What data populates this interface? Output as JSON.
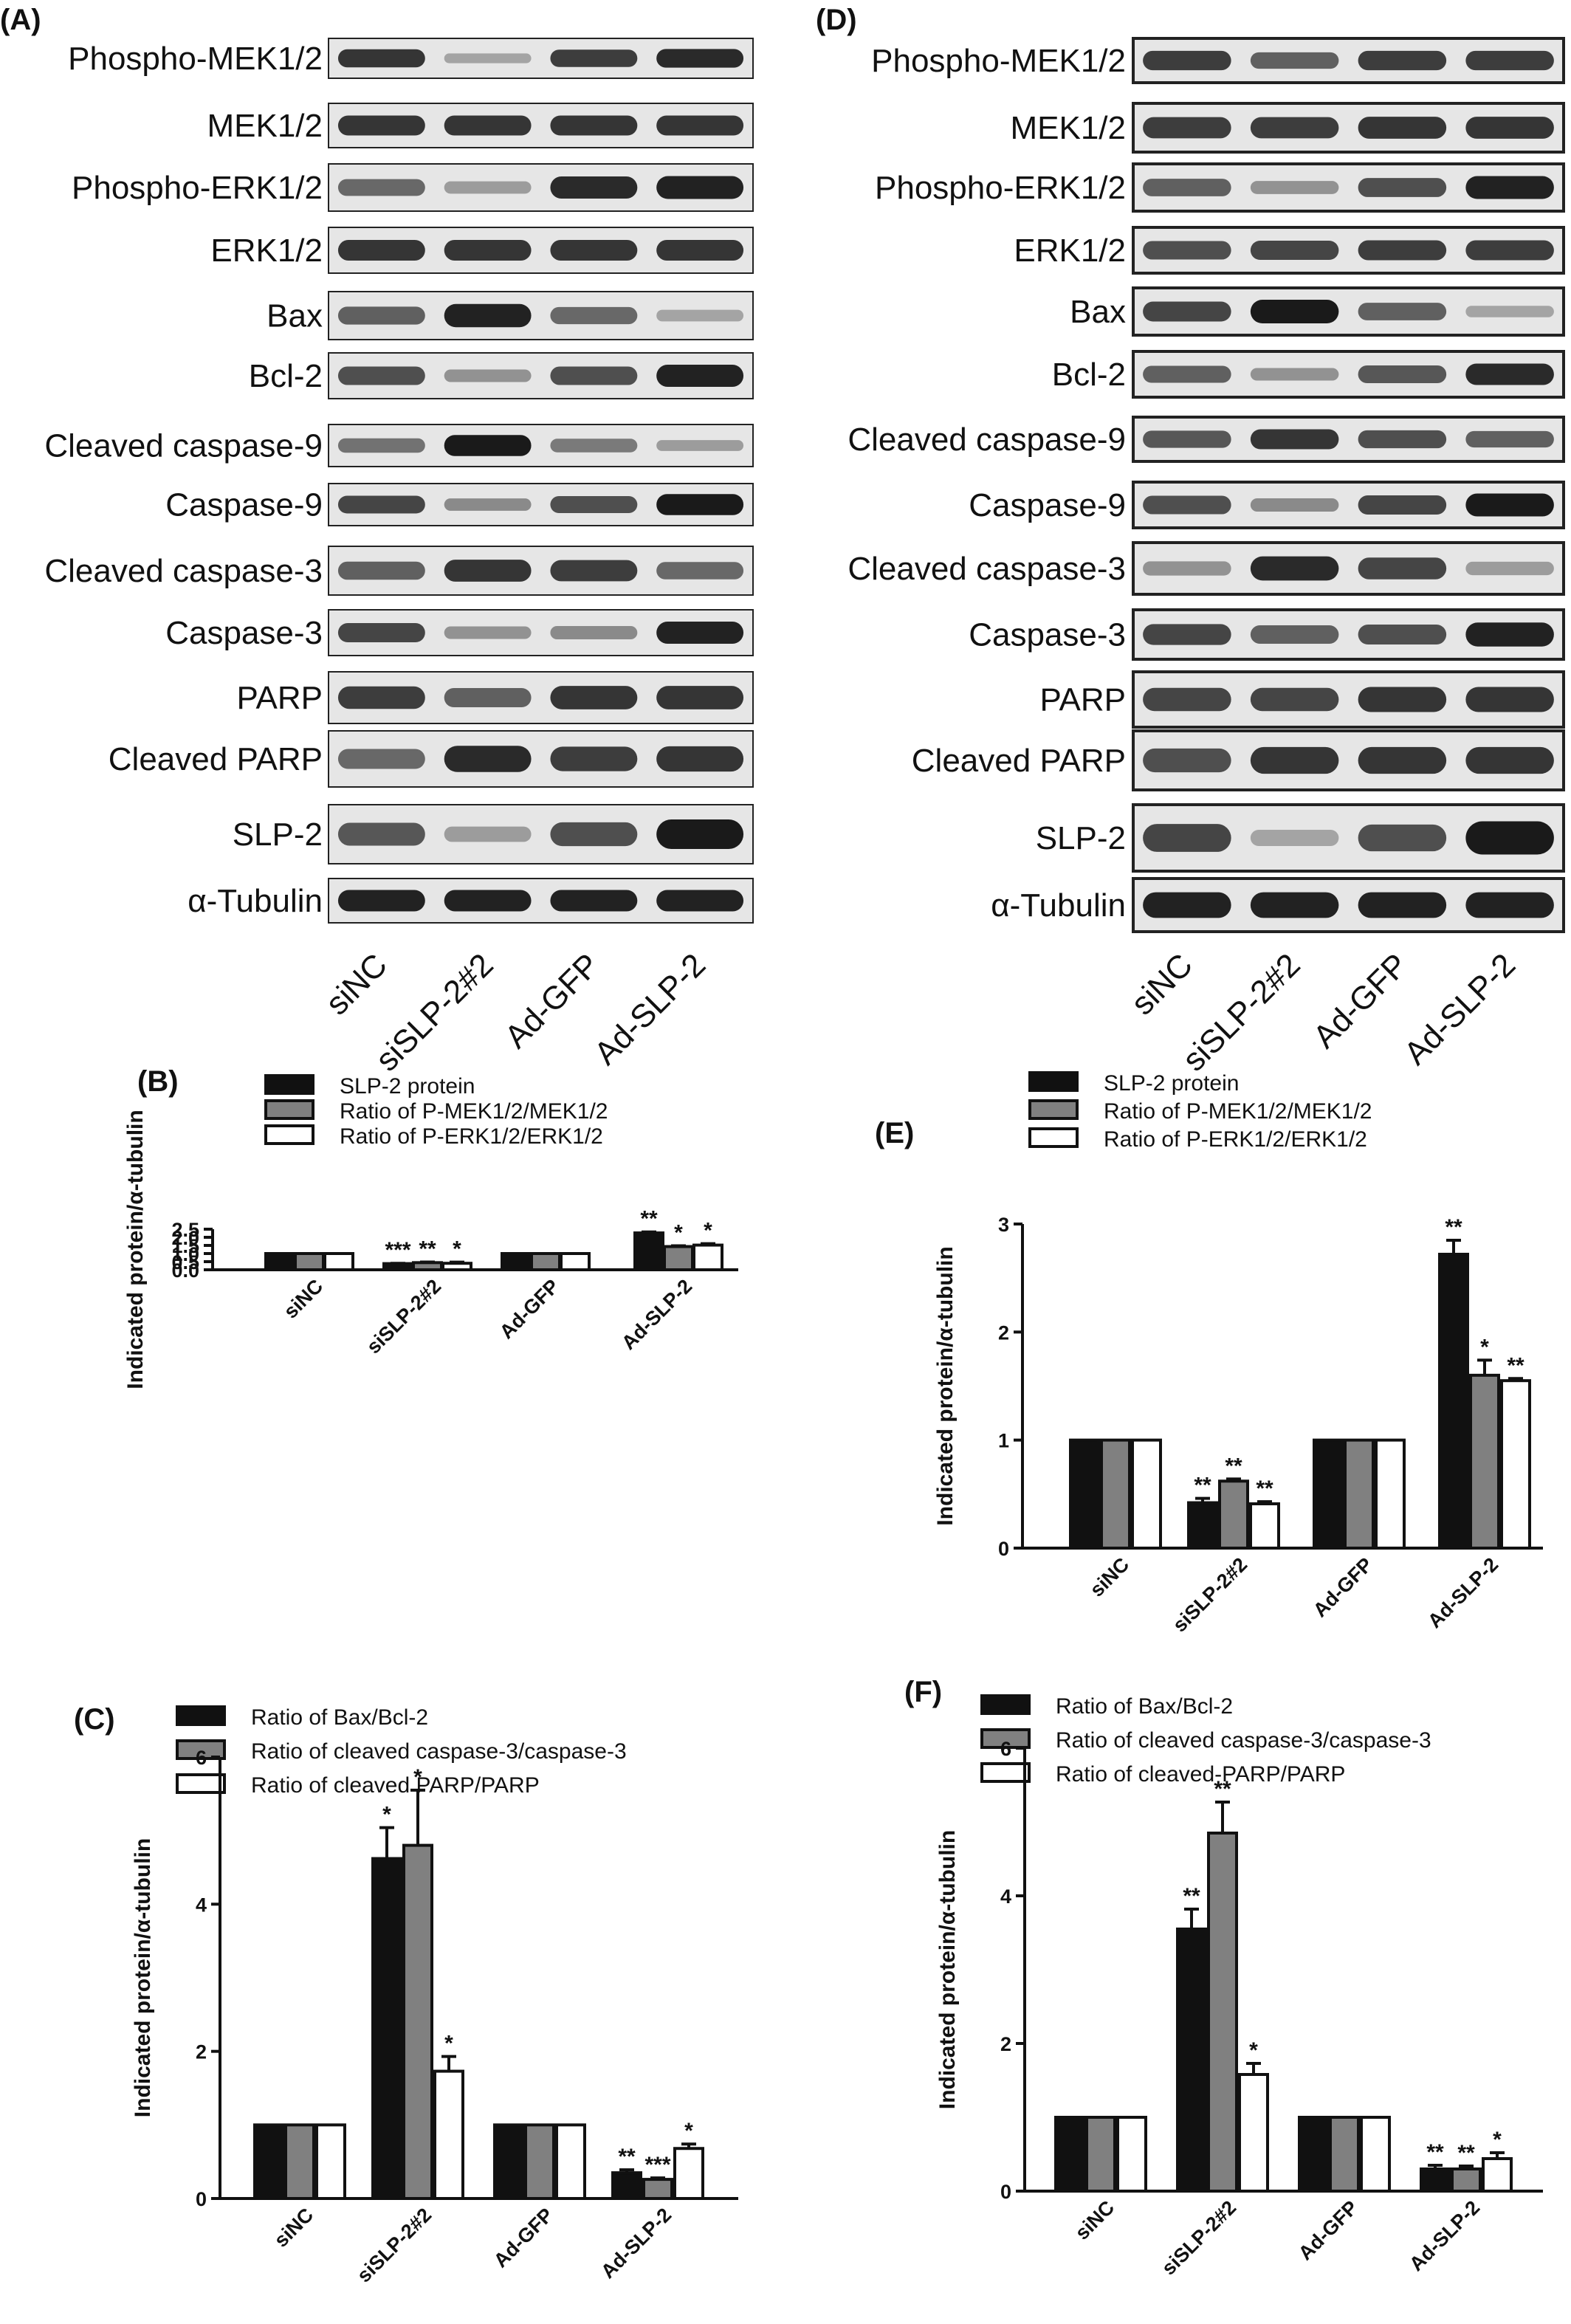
{
  "blot_panels": [
    {
      "letter": "(A)",
      "rows": [
        {
          "label": "Phospho-MEK1/2",
          "bands": [
            0.85,
            0.2,
            0.8,
            0.9
          ]
        },
        {
          "label": "MEK1/2",
          "bands": [
            0.85,
            0.85,
            0.85,
            0.85
          ]
        },
        {
          "label": "Phospho-ERK1/2",
          "bands": [
            0.55,
            0.25,
            0.9,
            0.95
          ]
        },
        {
          "label": "ERK1/2",
          "bands": [
            0.85,
            0.85,
            0.85,
            0.85
          ]
        },
        {
          "label": "Bax",
          "bands": [
            0.6,
            0.95,
            0.55,
            0.2
          ]
        },
        {
          "label": "Bcl-2",
          "bands": [
            0.7,
            0.3,
            0.7,
            0.95
          ]
        },
        {
          "label": "Cleaved caspase-9",
          "bands": [
            0.5,
            1.0,
            0.45,
            0.25
          ]
        },
        {
          "label": "Caspase-9",
          "bands": [
            0.75,
            0.35,
            0.7,
            1.0
          ]
        },
        {
          "label": "Cleaved caspase-3",
          "bands": [
            0.6,
            0.85,
            0.8,
            0.55
          ]
        },
        {
          "label": "Caspase-3",
          "bands": [
            0.75,
            0.3,
            0.35,
            0.95
          ]
        },
        {
          "label": "PARP",
          "bands": [
            0.8,
            0.6,
            0.85,
            0.85
          ]
        },
        {
          "label": "Cleaved PARP",
          "bands": [
            0.55,
            0.9,
            0.8,
            0.85
          ]
        },
        {
          "label": "SLP-2",
          "bands": [
            0.65,
            0.25,
            0.7,
            1.0
          ]
        },
        {
          "label": "α-Tubulin",
          "bands": [
            0.95,
            0.95,
            0.95,
            0.95
          ]
        }
      ],
      "lanes": [
        "siNC",
        "siSLP-2#2",
        "Ad-GFP",
        "Ad-SLP-2"
      ]
    },
    {
      "letter": "(D)",
      "rows": [
        {
          "label": "Phospho-MEK1/2",
          "bands": [
            0.8,
            0.6,
            0.8,
            0.8
          ]
        },
        {
          "label": "MEK1/2",
          "bands": [
            0.8,
            0.8,
            0.85,
            0.85
          ]
        },
        {
          "label": "Phospho-ERK1/2",
          "bands": [
            0.6,
            0.3,
            0.7,
            0.95
          ]
        },
        {
          "label": "ERK1/2",
          "bands": [
            0.7,
            0.75,
            0.8,
            0.8
          ]
        },
        {
          "label": "Bax",
          "bands": [
            0.75,
            1.0,
            0.6,
            0.2
          ]
        },
        {
          "label": "Bcl-2",
          "bands": [
            0.6,
            0.3,
            0.65,
            0.9
          ]
        },
        {
          "label": "Cleaved caspase-9",
          "bands": [
            0.65,
            0.85,
            0.7,
            0.6
          ]
        },
        {
          "label": "Caspase-9",
          "bands": [
            0.7,
            0.35,
            0.75,
            1.0
          ]
        },
        {
          "label": "Cleaved caspase-3",
          "bands": [
            0.3,
            0.9,
            0.75,
            0.25
          ]
        },
        {
          "label": "Caspase-3",
          "bands": [
            0.75,
            0.6,
            0.7,
            0.95
          ]
        },
        {
          "label": "PARP",
          "bands": [
            0.75,
            0.75,
            0.85,
            0.85
          ]
        },
        {
          "label": "Cleaved PARP",
          "bands": [
            0.7,
            0.85,
            0.85,
            0.85
          ]
        },
        {
          "label": "SLP-2",
          "bands": [
            0.75,
            0.2,
            0.7,
            1.0
          ]
        },
        {
          "label": "α-Tubulin",
          "bands": [
            0.95,
            0.95,
            0.95,
            0.95
          ]
        }
      ],
      "lanes": [
        "siNC",
        "siSLP-2#2",
        "Ad-GFP",
        "Ad-SLP-2"
      ]
    }
  ],
  "chart_data": [
    {
      "panel": "(B)",
      "type": "bar",
      "ylabel": "Indicated protein/α-tubulin",
      "ylim": [
        0,
        2.5
      ],
      "yticks": [
        "0.0",
        "0.5",
        "1.0",
        "1.5",
        "2.0",
        "2.5"
      ],
      "categories": [
        "siNC",
        "siSLP-2#2",
        "Ad-GFP",
        "Ad-SLP-2"
      ],
      "series": [
        {
          "name": "SLP-2 protein",
          "values": [
            1.0,
            0.38,
            1.0,
            2.27
          ],
          "errors": [
            0,
            0.02,
            0,
            0.06
          ],
          "marks": [
            "",
            "***",
            "",
            "**"
          ],
          "style": "black"
        },
        {
          "name": "Ratio of P-MEK1/2/MEK1/2",
          "values": [
            1.0,
            0.44,
            1.0,
            1.43
          ],
          "errors": [
            0,
            0.04,
            0,
            0.05
          ],
          "marks": [
            "",
            "**",
            "",
            "*"
          ],
          "style": "gray"
        },
        {
          "name": "Ratio of P-ERK1/2/ERK1/2",
          "values": [
            1.0,
            0.4,
            1.0,
            1.52
          ],
          "errors": [
            0,
            0.07,
            0,
            0.09
          ],
          "marks": [
            "",
            "*",
            "",
            "*"
          ],
          "style": "white"
        }
      ]
    },
    {
      "panel": "(E)",
      "type": "bar",
      "ylabel": "Indicated protein/α-tubulin",
      "ylim": [
        0,
        3
      ],
      "yticks": [
        "0",
        "1",
        "2",
        "3"
      ],
      "categories": [
        "siNC",
        "siSLP-2#2",
        "Ad-GFP",
        "Ad-SLP-2"
      ],
      "series": [
        {
          "name": "SLP-2 protein",
          "values": [
            1.0,
            0.42,
            1.0,
            2.72
          ],
          "errors": [
            0,
            0.04,
            0,
            0.13
          ],
          "marks": [
            "",
            "**",
            "",
            "**"
          ],
          "style": "black"
        },
        {
          "name": "Ratio of P-MEK1/2/MEK1/2",
          "values": [
            1.0,
            0.62,
            1.0,
            1.6
          ],
          "errors": [
            0,
            0.02,
            0,
            0.14
          ],
          "marks": [
            "",
            "**",
            "",
            "*"
          ],
          "style": "gray"
        },
        {
          "name": "Ratio of P-ERK1/2/ERK1/2",
          "values": [
            1.0,
            0.41,
            1.0,
            1.55
          ],
          "errors": [
            0,
            0.02,
            0,
            0.02
          ],
          "marks": [
            "",
            "**",
            "",
            "**"
          ],
          "style": "white"
        }
      ]
    },
    {
      "panel": "(C)",
      "type": "bar",
      "ylabel": "Indicated protein/α-tubulin",
      "ylim": [
        0,
        6
      ],
      "yticks": [
        "0",
        "2",
        "4",
        "6"
      ],
      "categories": [
        "siNC",
        "siSLP-2#2",
        "Ad-GFP",
        "Ad-SLP-2"
      ],
      "series": [
        {
          "name": "Ratio of Bax/Bcl-2",
          "values": [
            1.0,
            4.62,
            1.0,
            0.35
          ],
          "errors": [
            0,
            0.42,
            0,
            0.04
          ],
          "marks": [
            "",
            "*",
            "",
            "**"
          ],
          "style": "black"
        },
        {
          "name": "Ratio of cleaved caspase-3/caspase-3",
          "values": [
            1.0,
            4.8,
            1.0,
            0.26
          ],
          "errors": [
            0,
            0.75,
            0,
            0.02
          ],
          "marks": [
            "",
            "*",
            "",
            "***"
          ],
          "style": "gray"
        },
        {
          "name": "Ratio of cleaved PARP/PARP",
          "values": [
            1.0,
            1.73,
            1.0,
            0.68
          ],
          "errors": [
            0,
            0.2,
            0,
            0.06
          ],
          "marks": [
            "",
            "*",
            "",
            "*"
          ],
          "style": "white"
        }
      ]
    },
    {
      "panel": "(F)",
      "type": "bar",
      "ylabel": "Indicated protein/α-tubulin",
      "ylim": [
        0,
        6
      ],
      "yticks": [
        "0",
        "2",
        "4",
        "6"
      ],
      "categories": [
        "siNC",
        "siSLP-2#2",
        "Ad-GFP",
        "Ad-SLP-2"
      ],
      "series": [
        {
          "name": "Ratio of Bax/Bcl-2",
          "values": [
            1.0,
            3.55,
            1.0,
            0.3
          ],
          "errors": [
            0,
            0.27,
            0,
            0.05
          ],
          "marks": [
            "",
            "**",
            "",
            "**"
          ],
          "style": "black"
        },
        {
          "name": "Ratio of cleaved caspase-3/caspase-3",
          "values": [
            1.0,
            4.85,
            1.0,
            0.3
          ],
          "errors": [
            0,
            0.42,
            0,
            0.04
          ],
          "marks": [
            "",
            "**",
            "",
            "**"
          ],
          "style": "gray"
        },
        {
          "name": "Ratio of cleaved-PARP/PARP",
          "values": [
            1.0,
            1.58,
            1.0,
            0.44
          ],
          "errors": [
            0,
            0.15,
            0,
            0.08
          ],
          "marks": [
            "",
            "*",
            "",
            "*"
          ],
          "style": "white"
        }
      ]
    }
  ],
  "colors": {
    "black": "#111111",
    "gray": "#808080",
    "white": "#ffffff",
    "band": "#1a1a1a",
    "membrane": "#e6e6e6"
  }
}
